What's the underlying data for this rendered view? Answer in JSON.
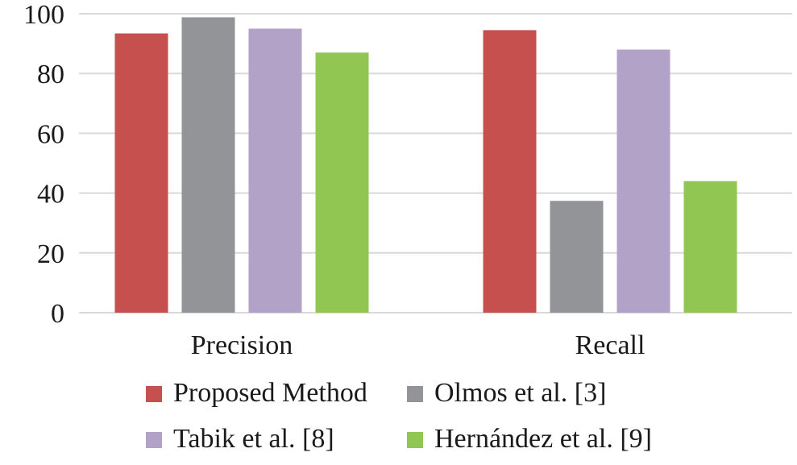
{
  "chart_data": {
    "type": "bar",
    "title": "",
    "xlabel": "",
    "ylabel": "",
    "categories": [
      "Precision",
      "Recall"
    ],
    "ylim": [
      0,
      100
    ],
    "yticks": [
      0,
      20,
      40,
      60,
      80,
      100
    ],
    "grid": true,
    "legend_position": "bottom",
    "series": [
      {
        "name": "Proposed Method",
        "color": "#c5504e",
        "values": [
          93.4,
          94.5
        ]
      },
      {
        "name": "Olmos et al. [3]",
        "color": "#929497",
        "values": [
          98.8,
          37.4
        ]
      },
      {
        "name": "Tabik et al. [8]",
        "color": "#b3a2c7",
        "values": [
          95.0,
          88.0
        ]
      },
      {
        "name": "Hernández et al. [9]",
        "color": "#92c652",
        "values": [
          87.0,
          44.0
        ]
      }
    ]
  }
}
